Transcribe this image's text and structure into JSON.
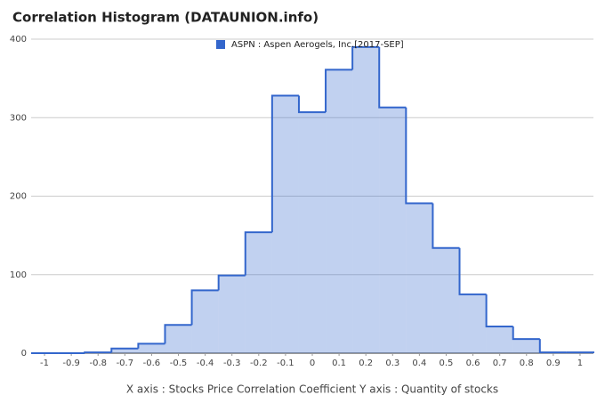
{
  "chart_data": {
    "type": "histogram",
    "title": "Correlation Histogram (DATAUNION.info)",
    "x_label": "X axis : Stocks Price Correlation Coefficient  Y axis : Quantity of stocks",
    "series": [
      {
        "name": "ASPN : Aspen Aerogels, Inc.[2017-SEP]",
        "color": "#3366cc",
        "values": [
          0,
          0,
          1,
          6,
          12,
          36,
          80,
          99,
          154,
          328,
          307,
          361,
          390,
          313,
          191,
          134,
          75,
          34,
          18,
          1,
          1
        ]
      }
    ],
    "bins": [
      -1.05,
      -0.95,
      -0.85,
      -0.75,
      -0.65,
      -0.55,
      -0.45,
      -0.35,
      -0.25,
      -0.15,
      -0.05,
      0.05,
      0.15,
      0.25,
      0.35,
      0.45,
      0.55,
      0.65,
      0.75,
      0.85,
      0.95,
      1.05
    ],
    "xlim": [
      -1.05,
      1.05
    ],
    "ylim": [
      0,
      400
    ],
    "xticks": [
      -1,
      -0.9,
      -0.8,
      -0.7,
      -0.6,
      -0.5,
      -0.4,
      -0.3,
      -0.2,
      -0.1,
      0,
      0.1,
      0.2,
      0.3,
      0.4,
      0.5,
      0.6,
      0.7,
      0.8,
      0.9,
      1
    ],
    "yticks": [
      0,
      100,
      200,
      300,
      400
    ],
    "grid": true,
    "legend": "top"
  }
}
